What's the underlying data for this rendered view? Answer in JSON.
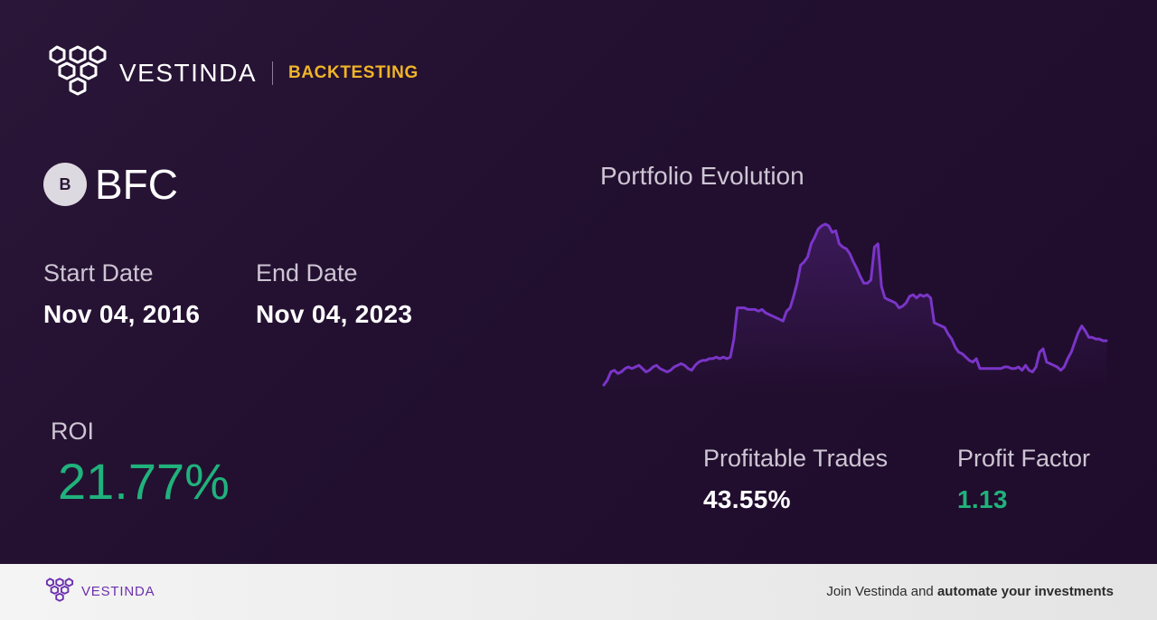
{
  "colors": {
    "accent_yellow": "#f0b429",
    "positive_green": "#20b27c",
    "chart_line": "#7a35c8",
    "footer_purple": "#6b2fae"
  },
  "header": {
    "logo_icon": "hexagon-cluster-icon",
    "brand": "VESTINDA",
    "section": "BACKTESTING"
  },
  "ticker": {
    "badge_letter": "B",
    "symbol": "BFC"
  },
  "dates": {
    "start_label": "Start Date",
    "start_value": "Nov 04, 2016",
    "end_label": "End Date",
    "end_value": "Nov 04, 2023"
  },
  "roi": {
    "label": "ROI",
    "value": "21.77%"
  },
  "chart": {
    "title": "Portfolio Evolution"
  },
  "chart_data": {
    "type": "line",
    "title": "Portfolio Evolution",
    "xlabel": "",
    "ylabel": "",
    "grid": false,
    "legend": "none",
    "series": [
      {
        "values": [
          0,
          3,
          8,
          9,
          7,
          8,
          10,
          11,
          10,
          11,
          12,
          10,
          8,
          9,
          11,
          12,
          10,
          9,
          8,
          9,
          11,
          12,
          13,
          12,
          10,
          9,
          12,
          14,
          15,
          15,
          16,
          16,
          17,
          16,
          17,
          16,
          17,
          28,
          47,
          47,
          47,
          46,
          46,
          46,
          45,
          46,
          44,
          43,
          42,
          41,
          40,
          39,
          45,
          47,
          54,
          62,
          73,
          75,
          78,
          86,
          90,
          95,
          97,
          98,
          97,
          93,
          94,
          86,
          84,
          83,
          80,
          75,
          71,
          66,
          62,
          62,
          64,
          84,
          86,
          60,
          53,
          52,
          51,
          50,
          47,
          48,
          50,
          54,
          55,
          53,
          55,
          54,
          55,
          53,
          38,
          37,
          36,
          35,
          31,
          28,
          23,
          20,
          19,
          17,
          15,
          14,
          16,
          10,
          10,
          10,
          10,
          10,
          10,
          10,
          11,
          11,
          10,
          10,
          11,
          9,
          12,
          9,
          8,
          11,
          20,
          22,
          14,
          13,
          12,
          11,
          9,
          11,
          16,
          20,
          26,
          32,
          36,
          33,
          29,
          29,
          28,
          28,
          27,
          27
        ]
      }
    ]
  },
  "stats": {
    "profitable_label": "Profitable Trades",
    "profitable_value": "43.55%",
    "factor_label": "Profit Factor",
    "factor_value": "1.13"
  },
  "footer": {
    "logo_icon": "hexagon-cluster-icon",
    "brand": "VESTINDA",
    "cta_prefix": "Join Vestinda and ",
    "cta_bold": "automate your investments"
  }
}
